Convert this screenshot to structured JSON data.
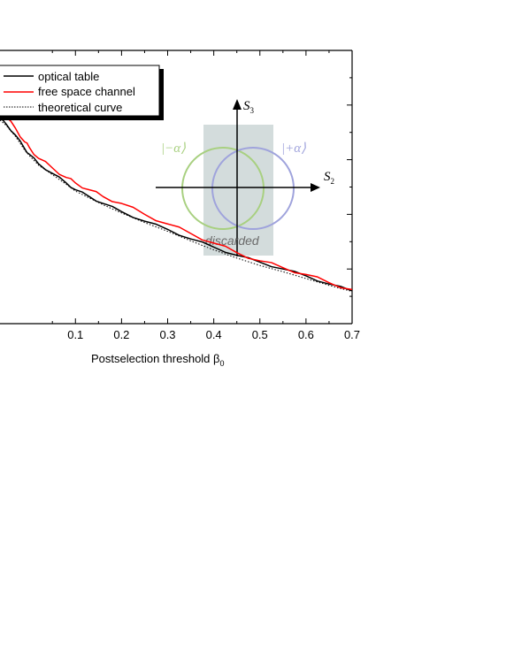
{
  "chart_data": {
    "type": "line",
    "xlabel": "Postselection threshold β",
    "xlabel_sub": "0",
    "xlim": [
      -0.0636,
      0.7
    ],
    "ylim": [
      0,
      1
    ],
    "x_ticks": [
      0.1,
      0.2,
      0.3,
      0.4,
      0.5,
      0.6,
      0.7
    ],
    "x_tick_labels": [
      "0.1",
      "0.2",
      "0.3",
      "0.4",
      "0.5",
      "0.6",
      "0.7"
    ],
    "y_ticks": [
      0.2,
      0.4,
      0.6,
      0.8
    ],
    "legend": {
      "placement": "top-left",
      "entries": [
        {
          "label": "optical table",
          "color": "#000000",
          "style": "solid"
        },
        {
          "label": "free space channel",
          "color": "#ff0000",
          "style": "solid"
        },
        {
          "label": "theoretical curve",
          "color": "#000000",
          "style": "dotted"
        }
      ]
    },
    "series": [
      {
        "name": "optical table",
        "color": "#000000",
        "style": "solid",
        "x": [
          -0.0636,
          -0.05,
          -0.03,
          -0.01,
          0.0,
          0.02,
          0.05,
          0.08,
          0.1,
          0.13,
          0.16,
          0.2,
          0.25,
          0.3,
          0.35,
          0.4,
          0.45,
          0.5,
          0.55,
          0.6,
          0.65,
          0.7
        ],
        "y": [
          0.75,
          0.73,
          0.69,
          0.64,
          0.62,
          0.585,
          0.55,
          0.515,
          0.49,
          0.465,
          0.44,
          0.41,
          0.375,
          0.345,
          0.31,
          0.28,
          0.25,
          0.225,
          0.2,
          0.175,
          0.145,
          0.12
        ]
      },
      {
        "name": "free space channel",
        "color": "#ff0000",
        "style": "solid",
        "x": [
          -0.0636,
          -0.05,
          -0.03,
          -0.01,
          0.0,
          0.02,
          0.05,
          0.08,
          0.1,
          0.13,
          0.16,
          0.2,
          0.25,
          0.3,
          0.35,
          0.4,
          0.45,
          0.5,
          0.55,
          0.6,
          0.65,
          0.7
        ],
        "y": [
          0.78,
          0.755,
          0.715,
          0.665,
          0.645,
          0.605,
          0.57,
          0.535,
          0.515,
          0.49,
          0.465,
          0.44,
          0.4,
          0.365,
          0.33,
          0.295,
          0.26,
          0.23,
          0.205,
          0.18,
          0.15,
          0.125
        ]
      },
      {
        "name": "theoretical curve",
        "color": "#000000",
        "style": "dotted",
        "x": [
          -0.0636,
          -0.05,
          -0.03,
          -0.01,
          0.0,
          0.02,
          0.05,
          0.08,
          0.1,
          0.13,
          0.16,
          0.2,
          0.25,
          0.3,
          0.35,
          0.4,
          0.45,
          0.5,
          0.55,
          0.6,
          0.65,
          0.7
        ],
        "y": [
          0.745,
          0.725,
          0.685,
          0.635,
          0.615,
          0.58,
          0.545,
          0.51,
          0.485,
          0.46,
          0.435,
          0.405,
          0.37,
          0.338,
          0.303,
          0.27,
          0.24,
          0.213,
          0.19,
          0.165,
          0.14,
          0.118
        ]
      }
    ],
    "inset": {
      "axis_h_label": "S",
      "axis_h_sub": "2",
      "axis_v_label": "S",
      "axis_v_sub": "3",
      "left_state_label": "|−α⟩",
      "right_state_label": "|+α⟩",
      "discarded_label": "discarded",
      "left_circle_color": "#a8d080",
      "right_circle_color": "#9fa3dc",
      "band_color": "#d3dcdc"
    }
  }
}
